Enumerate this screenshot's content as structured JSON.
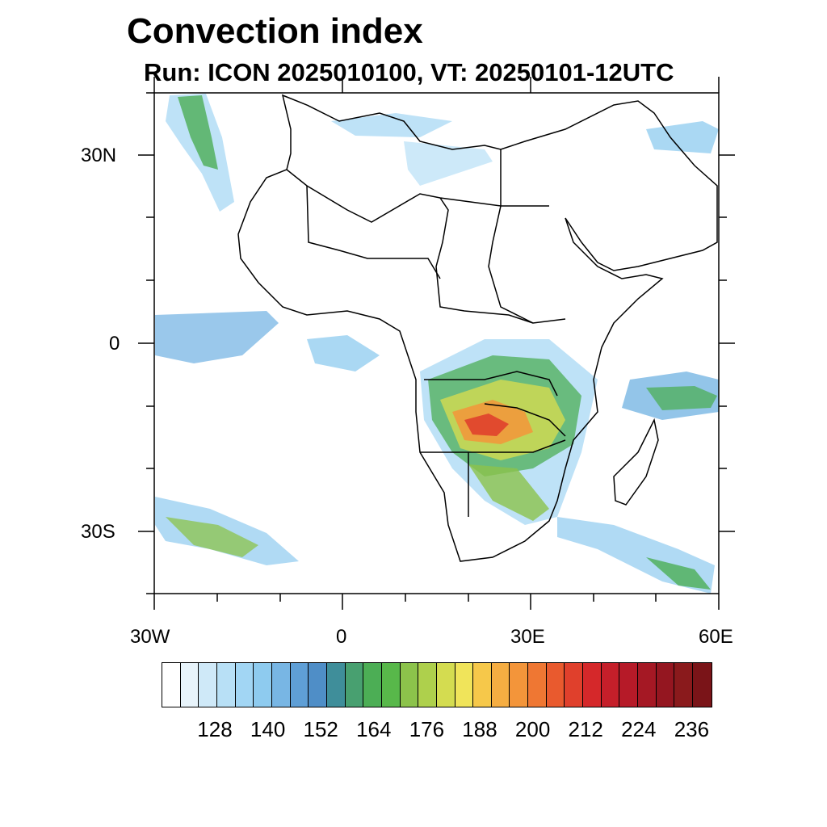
{
  "title": "Convection index",
  "subtitle": "Run: ICON 2025010100,  VT: 20250101-12UTC",
  "lat_labels": [
    "30N",
    "0",
    "30S"
  ],
  "lon_labels": [
    "30W",
    "0",
    "30E",
    "60E"
  ],
  "colorbar": {
    "labels": [
      "128",
      "140",
      "152",
      "164",
      "176",
      "188",
      "200",
      "212",
      "224",
      "236"
    ],
    "colors": [
      "#ffffff",
      "#e8f4fb",
      "#cfe9f8",
      "#b8e0f6",
      "#a2d6f4",
      "#8ecbef",
      "#78b6e4",
      "#5f9fd6",
      "#4f8ec7",
      "#3f8e9a",
      "#48a070",
      "#4cae55",
      "#58b84a",
      "#8cc34b",
      "#aed04c",
      "#d4dc50",
      "#f0e45a",
      "#f6c84a",
      "#f5ad42",
      "#f3953a",
      "#ef7733",
      "#e95a2e",
      "#e0402c",
      "#d5282a",
      "#c51f2a",
      "#b61a28",
      "#a51824",
      "#941620",
      "#8a1a1c",
      "#7a1418"
    ]
  },
  "map": {
    "projection": "cylindrical equidistant",
    "lon_range": [
      -30,
      60
    ],
    "lat_range": [
      -40,
      40
    ],
    "variable": "Convection index"
  }
}
